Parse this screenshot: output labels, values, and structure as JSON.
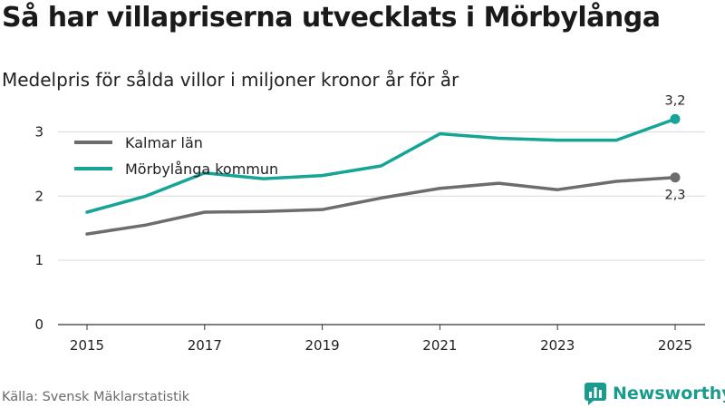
{
  "title": "Så har villapriserna utvecklats i Mörbylånga",
  "subtitle": "Medelpris för sålda villor i miljoner kronor år för år",
  "source": "Källa: Svensk Mäklarstatistik",
  "brand": {
    "name": "Newsworthy",
    "icon": "newsworthy-logo-icon",
    "color": "#1b9a8e"
  },
  "chart_data": {
    "type": "line",
    "title": "Så har villapriserna utvecklats i Mörbylånga",
    "subtitle": "Medelpris för sålda villor i miljoner kronor år för år",
    "xlabel": "",
    "ylabel": "",
    "x": [
      2015,
      2016,
      2017,
      2018,
      2019,
      2020,
      2021,
      2022,
      2023,
      2024,
      2025
    ],
    "x_ticks": [
      "2015",
      "2017",
      "2019",
      "2021",
      "2023",
      "2025"
    ],
    "y_ticks": [
      "0",
      "1",
      "2",
      "3"
    ],
    "ylim": [
      0,
      3.5
    ],
    "xlim": [
      2015,
      2025
    ],
    "grid": true,
    "legend_position": "top-left",
    "series": [
      {
        "name": "Kalmar län",
        "color": "#6d6d6d",
        "values": [
          1.41,
          1.55,
          1.75,
          1.76,
          1.79,
          1.97,
          2.12,
          2.2,
          2.1,
          2.23,
          2.29
        ],
        "end_label": "2,3"
      },
      {
        "name": "Mörbylånga kommun",
        "color": "#16a497",
        "values": [
          1.75,
          2.0,
          2.36,
          2.27,
          2.32,
          2.47,
          2.97,
          2.9,
          2.87,
          2.87,
          3.2
        ],
        "end_label": "3,2"
      }
    ]
  }
}
